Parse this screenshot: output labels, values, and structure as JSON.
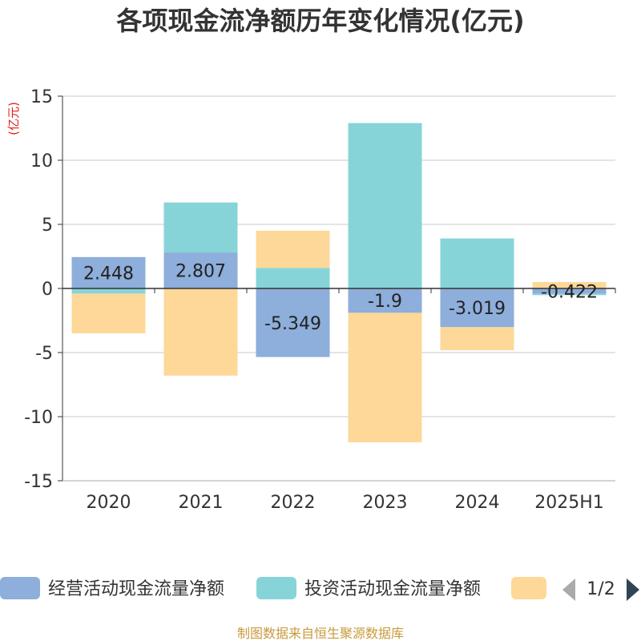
{
  "chart_data": {
    "type": "bar",
    "stacked": true,
    "title": "各项现金流净额历年变化情况(亿元)",
    "ylabel": "(亿元)",
    "ylim": [
      -15,
      15
    ],
    "yticks": [
      15,
      10,
      5,
      0,
      -5,
      -10,
      -15
    ],
    "categories": [
      "2020",
      "2021",
      "2022",
      "2023",
      "2024",
      "2025H1"
    ],
    "grid": true,
    "series": [
      {
        "name": "经营活动现金流量净额",
        "color": "#8eaedb",
        "values": [
          2.448,
          2.807,
          -5.349,
          -1.9,
          -3.019,
          -0.422
        ],
        "labels": [
          "2.448",
          "2.807",
          "-5.349",
          "-1.9",
          "-3.019",
          "-0.422"
        ]
      },
      {
        "name": "投资活动现金流量净额",
        "color": "#87d4d8",
        "values": [
          -0.4,
          3.9,
          1.6,
          12.9,
          3.9,
          -0.1
        ]
      },
      {
        "name": "",
        "color": "#fdd898",
        "values": [
          -3.1,
          -6.8,
          2.9,
          -10.1,
          -1.8,
          0.5
        ]
      }
    ],
    "legend": {
      "position": "bottom",
      "page": "1/2"
    },
    "footer": "制图数据来自恒生聚源数据库"
  }
}
